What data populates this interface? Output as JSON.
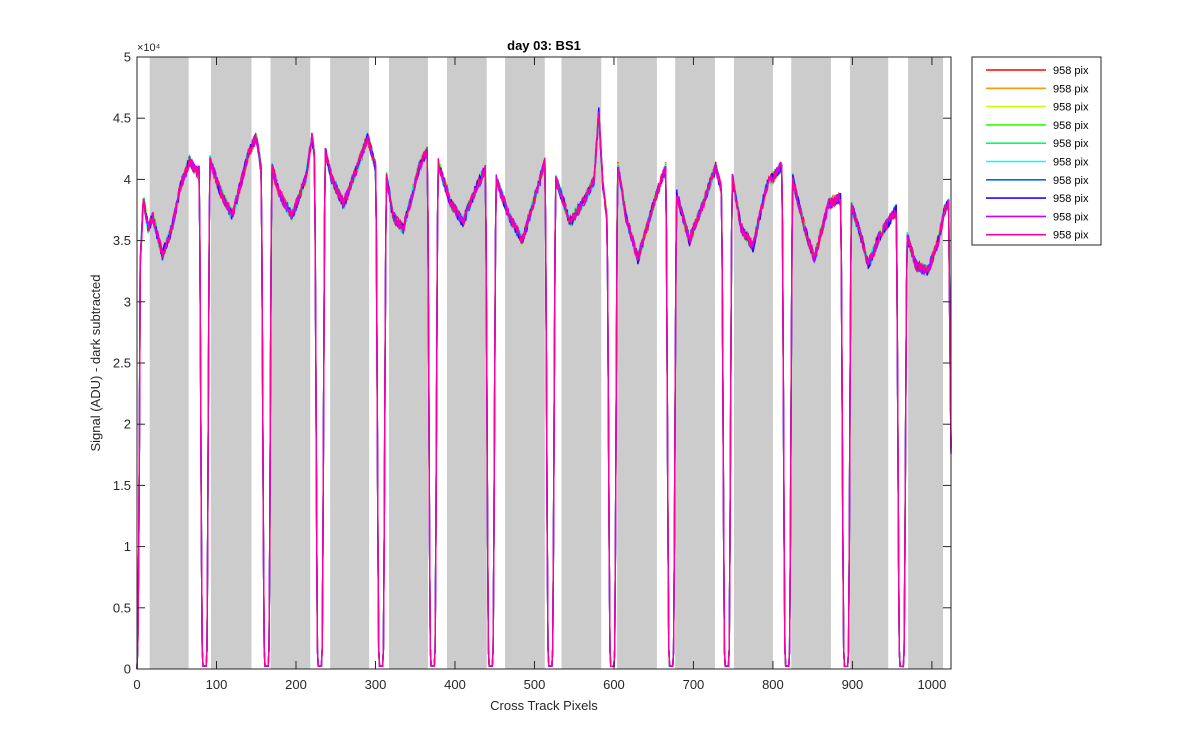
{
  "chart_data": {
    "type": "line",
    "title": "day 03: BS1",
    "xlabel": "Cross Track Pixels",
    "ylabel": "Signal (ADU) - dark subtracted",
    "y_exponent_label": "×10⁴",
    "xlim": [
      0,
      1024
    ],
    "ylim": [
      0,
      5
    ],
    "x_ticks": [
      0,
      100,
      200,
      300,
      400,
      500,
      600,
      700,
      800,
      900,
      1000
    ],
    "x_tick_labels": [
      "0",
      "100",
      "200",
      "300",
      "400",
      "500",
      "600",
      "700",
      "800",
      "900",
      "1000"
    ],
    "y_ticks": [
      0,
      0.5,
      1,
      1.5,
      2,
      2.5,
      3,
      3.5,
      4,
      4.5,
      5
    ],
    "y_tick_labels": [
      "0",
      "0.5",
      "1",
      "1.5",
      "2",
      "2.5",
      "3",
      "3.5",
      "4",
      "4.5",
      "5"
    ],
    "grid": false,
    "legend_position": "outside-top-right",
    "shaded_bands": [
      [
        16,
        65
      ],
      [
        93,
        144
      ],
      [
        168,
        218
      ],
      [
        243,
        292
      ],
      [
        317,
        366
      ],
      [
        390,
        440
      ],
      [
        463,
        513
      ],
      [
        534,
        584
      ],
      [
        604,
        654
      ],
      [
        677,
        727
      ],
      [
        751,
        800
      ],
      [
        823,
        873
      ],
      [
        897,
        945
      ],
      [
        970,
        1014
      ]
    ],
    "band_color": "#cccccc",
    "dips": [
      85,
      163,
      230,
      307,
      372,
      445,
      520,
      598,
      672,
      742,
      818,
      892,
      962
    ],
    "envelope": [
      [
        0,
        0.03
      ],
      [
        4,
        3.3
      ],
      [
        8,
        3.85
      ],
      [
        14,
        3.6
      ],
      [
        20,
        3.7
      ],
      [
        32,
        3.38
      ],
      [
        44,
        3.6
      ],
      [
        55,
        3.95
      ],
      [
        66,
        4.15
      ],
      [
        76,
        4.05
      ],
      [
        90,
        4.2
      ],
      [
        105,
        3.9
      ],
      [
        120,
        3.7
      ],
      [
        140,
        4.2
      ],
      [
        150,
        4.35
      ],
      [
        158,
        4.0
      ],
      [
        168,
        4.15
      ],
      [
        178,
        3.9
      ],
      [
        195,
        3.7
      ],
      [
        212,
        4.0
      ],
      [
        220,
        4.35
      ],
      [
        225,
        4.1
      ],
      [
        236,
        4.25
      ],
      [
        245,
        4.0
      ],
      [
        260,
        3.8
      ],
      [
        280,
        4.15
      ],
      [
        290,
        4.35
      ],
      [
        300,
        4.1
      ],
      [
        312,
        4.1
      ],
      [
        322,
        3.7
      ],
      [
        335,
        3.6
      ],
      [
        355,
        4.1
      ],
      [
        366,
        4.25
      ],
      [
        378,
        4.15
      ],
      [
        395,
        3.8
      ],
      [
        410,
        3.65
      ],
      [
        428,
        3.95
      ],
      [
        440,
        4.1
      ],
      [
        452,
        4.0
      ],
      [
        468,
        3.7
      ],
      [
        485,
        3.5
      ],
      [
        505,
        3.95
      ],
      [
        515,
        4.2
      ],
      [
        527,
        4.0
      ],
      [
        545,
        3.65
      ],
      [
        565,
        3.85
      ],
      [
        575,
        4.0
      ],
      [
        581,
        4.55
      ],
      [
        586,
        3.95
      ],
      [
        593,
        3.6
      ],
      [
        604,
        4.15
      ],
      [
        615,
        3.7
      ],
      [
        630,
        3.35
      ],
      [
        650,
        3.8
      ],
      [
        665,
        4.1
      ],
      [
        678,
        3.9
      ],
      [
        695,
        3.5
      ],
      [
        712,
        3.8
      ],
      [
        728,
        4.1
      ],
      [
        736,
        3.9
      ],
      [
        748,
        4.05
      ],
      [
        760,
        3.6
      ],
      [
        775,
        3.45
      ],
      [
        792,
        3.95
      ],
      [
        810,
        4.1
      ],
      [
        825,
        4.0
      ],
      [
        840,
        3.6
      ],
      [
        852,
        3.35
      ],
      [
        870,
        3.8
      ],
      [
        885,
        3.85
      ],
      [
        898,
        3.8
      ],
      [
        910,
        3.55
      ],
      [
        920,
        3.3
      ],
      [
        935,
        3.55
      ],
      [
        955,
        3.75
      ],
      [
        968,
        3.55
      ],
      [
        980,
        3.3
      ],
      [
        995,
        3.25
      ],
      [
        1008,
        3.5
      ],
      [
        1016,
        3.75
      ],
      [
        1021,
        3.8
      ],
      [
        1024,
        1.8
      ]
    ],
    "series": [
      {
        "name": "958 pix",
        "color": "#ff0000"
      },
      {
        "name": "958 pix",
        "color": "#ff9900"
      },
      {
        "name": "958 pix",
        "color": "#ccff00"
      },
      {
        "name": "958 pix",
        "color": "#33ff00"
      },
      {
        "name": "958 pix",
        "color": "#00ff66"
      },
      {
        "name": "958 pix",
        "color": "#00ffff"
      },
      {
        "name": "958 pix",
        "color": "#0066ff"
      },
      {
        "name": "958 pix",
        "color": "#3300ff"
      },
      {
        "name": "958 pix",
        "color": "#cc00ff"
      },
      {
        "name": "958 pix",
        "color": "#ff0099"
      }
    ]
  }
}
